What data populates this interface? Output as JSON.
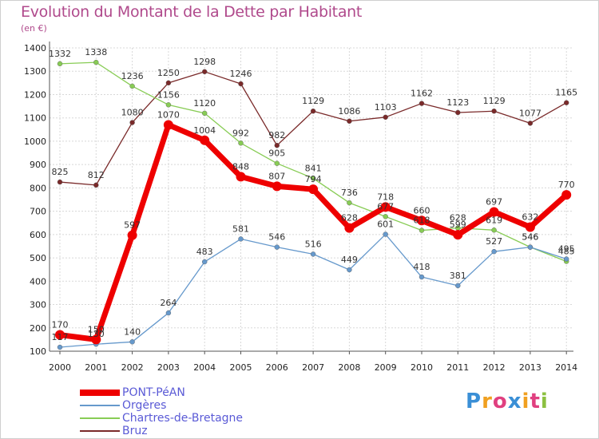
{
  "title": "Evolution du Montant de la Dette par Habitant",
  "subtitle": "(en €)",
  "logo": {
    "text": "Proxiti",
    "letters": [
      {
        "ch": "P",
        "color": "#3a8fd6"
      },
      {
        "ch": "r",
        "color": "#f0a020"
      },
      {
        "ch": "o",
        "color": "#e04080"
      },
      {
        "ch": "x",
        "color": "#3a8fd6"
      },
      {
        "ch": "i",
        "color": "#f0a020"
      },
      {
        "ch": "t",
        "color": "#e04080"
      },
      {
        "ch": "i",
        "color": "#8cc040"
      }
    ]
  },
  "chart_data": {
    "type": "line",
    "categories": [
      "2000",
      "2001",
      "2002",
      "2003",
      "2004",
      "2005",
      "2006",
      "2007",
      "2008",
      "2009",
      "2010",
      "2011",
      "2012",
      "2013",
      "2014"
    ],
    "ylim": [
      100,
      1400
    ],
    "yticks": [
      100,
      200,
      300,
      400,
      500,
      600,
      700,
      800,
      900,
      1000,
      1100,
      1200,
      1300,
      1400
    ],
    "grid": true,
    "legend_position": "bottom-left",
    "series": [
      {
        "name": "Bruz",
        "color": "#7a2a2a",
        "values": [
          825,
          812,
          1080,
          1250,
          1298,
          1246,
          982,
          1129,
          1086,
          1103,
          1162,
          1123,
          1129,
          1077,
          1165
        ]
      },
      {
        "name": "Chartres-de-Bretagne",
        "color": "#88cc55",
        "values": [
          1332,
          1338,
          1236,
          1156,
          1120,
          992,
          905,
          841,
          736,
          677,
          618,
          628,
          619,
          546,
          485
        ]
      },
      {
        "name": "Orgères",
        "color": "#6699cc",
        "values": [
          117,
          130,
          140,
          264,
          483,
          581,
          546,
          516,
          449,
          601,
          418,
          381,
          527,
          546,
          495
        ]
      },
      {
        "name": "PONT-PéAN",
        "color": "#ee0000",
        "values": [
          170,
          150,
          597,
          1070,
          1004,
          848,
          807,
          794,
          628,
          718,
          660,
          599,
          697,
          632,
          770
        ]
      }
    ],
    "legend_order": [
      "PONT-PéAN",
      "Orgères",
      "Chartres-de-Bretagne",
      "Bruz"
    ]
  }
}
